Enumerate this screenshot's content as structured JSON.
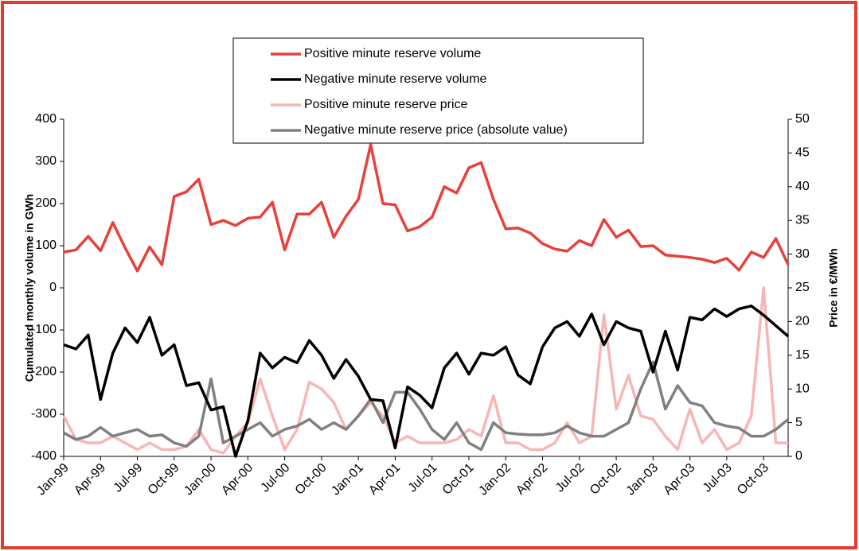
{
  "chart_data": {
    "type": "line",
    "y_label": "Cumulated monthly volume in GWh",
    "y2_label": "Price in €/MWh",
    "categories": [
      "Jan-99",
      null,
      null,
      "Apr-99",
      null,
      null,
      "Jul-99",
      null,
      null,
      "Oct-99",
      null,
      null,
      "Jan-00",
      null,
      null,
      "Apr-00",
      null,
      null,
      "Jul-00",
      null,
      null,
      "Oct-00",
      null,
      null,
      "Jan-01",
      null,
      null,
      "Apr-01",
      null,
      null,
      "Jul-01",
      null,
      null,
      "Oct-01",
      null,
      null,
      "Jan-02",
      null,
      null,
      "Apr-02",
      null,
      null,
      "Jul-02",
      null,
      null,
      "Oct-02",
      null,
      null,
      "Jan-03",
      null,
      null,
      "Apr-03",
      null,
      null,
      "Jul-03",
      null,
      null,
      "Oct-03",
      null,
      null
    ],
    "series": [
      {
        "name": "Positive minute reserve volume",
        "color": "#e8403a",
        "values": [
          85,
          90,
          122,
          88,
          155,
          95,
          40,
          97,
          55,
          217,
          228,
          258,
          150,
          160,
          148,
          165,
          168,
          203,
          90,
          175,
          175,
          203,
          120,
          170,
          210,
          340,
          200,
          197,
          135,
          145,
          168,
          240,
          225,
          285,
          297,
          210,
          140,
          142,
          130,
          105,
          92,
          87,
          112,
          100,
          162,
          120,
          137,
          98,
          100,
          78,
          75,
          72,
          68,
          60,
          70,
          42,
          85,
          72,
          117,
          55
        ]
      },
      {
        "name": "Negative minute reserve volume",
        "color": "#000000",
        "values": [
          -135,
          -145,
          -112,
          -265,
          -155,
          -95,
          -130,
          -70,
          -160,
          -135,
          -232,
          -225,
          -290,
          -282,
          -400,
          -315,
          -155,
          -190,
          -165,
          -178,
          -125,
          -160,
          -215,
          -170,
          -210,
          -265,
          -268,
          -380,
          -235,
          -255,
          -285,
          -190,
          -155,
          -205,
          -155,
          -160,
          -140,
          -207,
          -228,
          -140,
          -95,
          -80,
          -115,
          -62,
          -135,
          -80,
          -95,
          -103,
          -200,
          -103,
          -195,
          -70,
          -76,
          -50,
          -68,
          -50,
          -43,
          -65,
          -90,
          -115
        ]
      },
      {
        "name": "Positive minute reserve price",
        "color": "#f7b6b6",
        "axis": "y2",
        "values": [
          6,
          2.5,
          2,
          2,
          3,
          2,
          1,
          2,
          1,
          1,
          1.5,
          4,
          1,
          0.5,
          3,
          5,
          11.5,
          6,
          1,
          4,
          11,
          10,
          8,
          4,
          6,
          8,
          6,
          2,
          3,
          2,
          2,
          2,
          2.5,
          4,
          3,
          9,
          2,
          2,
          1,
          1,
          2,
          5,
          2,
          3,
          21,
          7,
          12,
          6,
          5.5,
          3,
          1,
          7,
          2,
          4,
          1,
          2,
          6,
          25,
          2,
          2
        ]
      },
      {
        "name": "Negative minute reserve price (absolute value)",
        "color": "#808080",
        "axis": "y2",
        "values": [
          3.5,
          2.5,
          3,
          4.3,
          3,
          3.5,
          4,
          3,
          3.2,
          2,
          1.5,
          3,
          11.5,
          2,
          3,
          4,
          5,
          3,
          4,
          4.5,
          5.5,
          4,
          5,
          4,
          6,
          8.5,
          5,
          9.5,
          9.5,
          7,
          4,
          2.5,
          5,
          2,
          1,
          5,
          3.5,
          3.3,
          3.2,
          3.2,
          3.5,
          4.5,
          3.5,
          3,
          3,
          4,
          5,
          10,
          14,
          7,
          10.5,
          8,
          7.5,
          5,
          4.5,
          4.2,
          3,
          3,
          4,
          5.5
        ]
      }
    ],
    "ylim": [
      -400,
      400
    ],
    "yticks": [
      -400,
      -300,
      -200,
      -100,
      0,
      100,
      200,
      300,
      400
    ],
    "y2lim": [
      0,
      50
    ],
    "y2ticks": [
      0,
      5,
      10,
      15,
      20,
      25,
      30,
      35,
      40,
      45,
      50
    ]
  }
}
